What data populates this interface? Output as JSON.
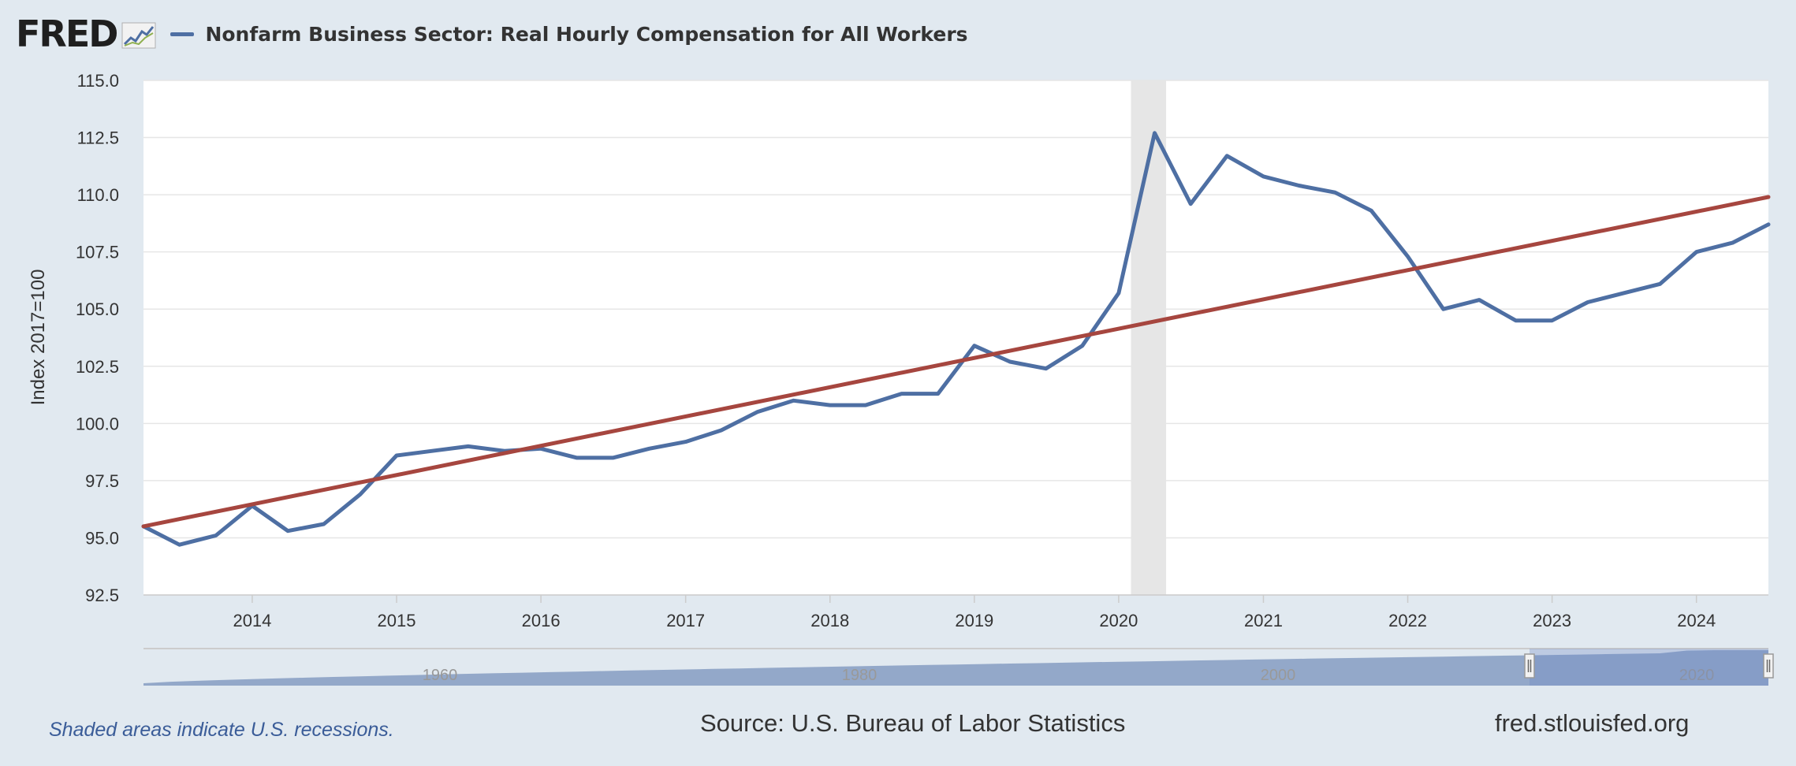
{
  "header": {
    "logo_text": "FRED",
    "logo_icon": "line-graph-icon",
    "series_title": "Nonfarm Business Sector: Real Hourly Compensation for All Workers"
  },
  "colors": {
    "series": "#4e6fa3",
    "trendline": "#a6463f",
    "recession": "#e6e6e6",
    "navigator": "#7f97bf",
    "background": "#e1e9f0"
  },
  "chart_data": {
    "type": "line",
    "title": "Nonfarm Business Sector: Real Hourly Compensation for All Workers",
    "ylabel": "Index 2017=100",
    "xlabel": "",
    "ylim": [
      92.5,
      115.0
    ],
    "xlim": [
      "2013-04-01",
      "2024-07-01"
    ],
    "yticks": [
      "92.5",
      "95.0",
      "97.5",
      "100.0",
      "102.5",
      "105.0",
      "107.5",
      "110.0",
      "112.5",
      "115.0"
    ],
    "xticks": [
      "2014",
      "2015",
      "2016",
      "2017",
      "2018",
      "2019",
      "2020",
      "2021",
      "2022",
      "2023",
      "2024"
    ],
    "grid": true,
    "legend": "top-left",
    "recessions": [
      {
        "start": "2020-02-01",
        "end": "2020-04-30"
      }
    ],
    "series": [
      {
        "name": "Nonfarm Business Sector: Real Hourly Compensation for All Workers",
        "x": [
          "2013-04-01",
          "2013-07-01",
          "2013-10-01",
          "2014-01-01",
          "2014-04-01",
          "2014-07-01",
          "2014-10-01",
          "2015-01-01",
          "2015-04-01",
          "2015-07-01",
          "2015-10-01",
          "2016-01-01",
          "2016-04-01",
          "2016-07-01",
          "2016-10-01",
          "2017-01-01",
          "2017-04-01",
          "2017-07-01",
          "2017-10-01",
          "2018-01-01",
          "2018-04-01",
          "2018-07-01",
          "2018-10-01",
          "2019-01-01",
          "2019-04-01",
          "2019-07-01",
          "2019-10-01",
          "2020-01-01",
          "2020-04-01",
          "2020-07-01",
          "2020-10-01",
          "2021-01-01",
          "2021-04-01",
          "2021-07-01",
          "2021-10-01",
          "2022-01-01",
          "2022-04-01",
          "2022-07-01",
          "2022-10-01",
          "2023-01-01",
          "2023-04-01",
          "2023-07-01",
          "2023-10-01",
          "2024-01-01",
          "2024-04-01",
          "2024-07-01"
        ],
        "values": [
          95.5,
          94.7,
          95.1,
          96.4,
          95.3,
          95.6,
          96.9,
          98.6,
          98.8,
          99.0,
          98.8,
          98.9,
          98.5,
          98.5,
          98.9,
          99.2,
          99.7,
          100.5,
          101.0,
          100.8,
          100.8,
          101.3,
          101.3,
          103.4,
          102.7,
          102.4,
          103.4,
          105.7,
          112.7,
          109.6,
          111.7,
          110.8,
          110.4,
          110.1,
          109.3,
          107.3,
          105.0,
          105.4,
          104.5,
          104.5,
          105.3,
          105.7,
          106.1,
          107.5,
          107.9,
          108.7
        ]
      },
      {
        "name": "",
        "type": "trendline",
        "x": [
          "2013-04-01",
          "2024-07-01"
        ],
        "values": [
          95.5,
          109.9
        ]
      }
    ]
  },
  "navigator": {
    "labels": [
      "1960",
      "1980",
      "2000",
      "2020"
    ]
  },
  "footer": {
    "recession_note": "Shaded areas indicate U.S. recessions.",
    "source": "Source: U.S. Bureau of Labor Statistics",
    "url": "fred.stlouisfed.org"
  }
}
